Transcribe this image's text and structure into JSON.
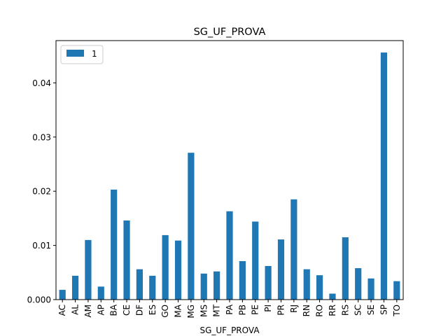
{
  "chart_data": {
    "type": "bar",
    "title": "SG_UF_PROVA",
    "xlabel": "SG_UF_PROVA",
    "ylabel": "",
    "ylim": [
      0,
      0.0478
    ],
    "yticks": [
      "0.000",
      "0.01",
      "0.02",
      "0.03",
      "0.04"
    ],
    "ytick_values": [
      0,
      0.01,
      0.02,
      0.03,
      0.04
    ],
    "categories": [
      "AC",
      "AL",
      "AM",
      "AP",
      "BA",
      "CE",
      "DF",
      "ES",
      "GO",
      "MA",
      "MG",
      "MS",
      "MT",
      "PA",
      "PB",
      "PE",
      "PI",
      "PR",
      "RJ",
      "RN",
      "RO",
      "RR",
      "RS",
      "SC",
      "SE",
      "SP",
      "TO"
    ],
    "series": [
      {
        "name": "1",
        "color": "#1f77b4",
        "values": [
          0.0018,
          0.0044,
          0.011,
          0.0024,
          0.0203,
          0.0146,
          0.0056,
          0.0044,
          0.0119,
          0.0109,
          0.0271,
          0.0048,
          0.0052,
          0.0163,
          0.0071,
          0.0144,
          0.0062,
          0.0111,
          0.0185,
          0.0056,
          0.0045,
          0.0011,
          0.0115,
          0.0058,
          0.0039,
          0.0456,
          0.0034
        ]
      }
    ],
    "legend_position": "top-left",
    "grid": false
  }
}
